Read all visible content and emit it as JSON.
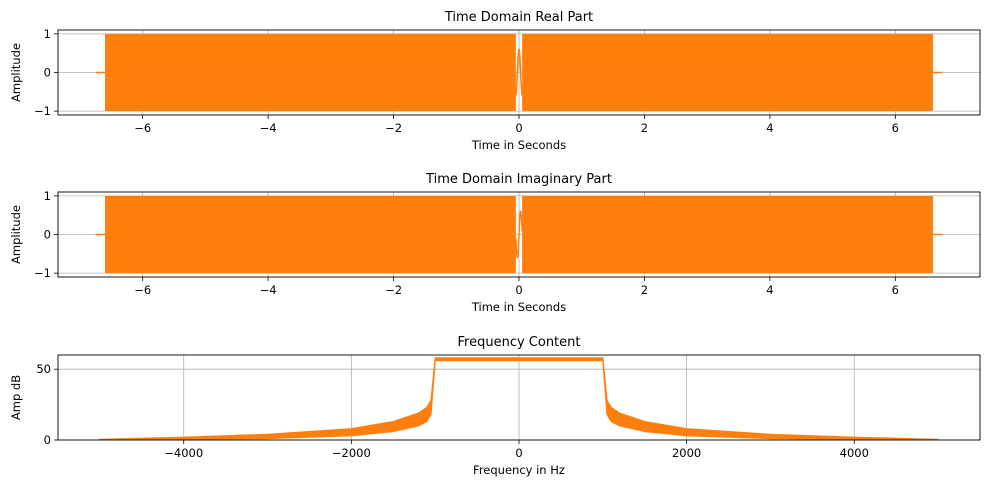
{
  "chart_data": [
    {
      "type": "line",
      "title": "Time Domain Real Part",
      "xlabel": "Time in Seconds",
      "ylabel": "Amplitude",
      "xlim": [
        -7.35,
        7.35
      ],
      "ylim": [
        -1.1,
        1.1
      ],
      "xticks": [
        -6,
        -4,
        -2,
        0,
        2,
        4,
        6
      ],
      "yticks": [
        -1,
        0,
        1
      ],
      "grid": true,
      "color": "#ff7f0e",
      "series": [
        {
          "x": [
            -6.75,
            -6.6,
            -6.6,
            -0.05,
            0.05,
            6.6,
            6.6,
            6.75
          ],
          "y_min": [
            0,
            0,
            -1,
            -1,
            -1,
            -1,
            0,
            0
          ],
          "y_max": [
            0,
            0,
            1,
            1,
            1,
            1,
            0,
            0
          ],
          "description_values": [
            0.55,
            -0.55,
            0.6
          ]
        }
      ]
    },
    {
      "type": "line",
      "title": "Time Domain Imaginary Part",
      "xlabel": "Time in Seconds",
      "ylabel": "Amplitude",
      "xlim": [
        -7.35,
        7.35
      ],
      "ylim": [
        -1.1,
        1.1
      ],
      "xticks": [
        -6,
        -4,
        -2,
        0,
        2,
        4,
        6
      ],
      "yticks": [
        -1,
        0,
        1
      ],
      "grid": true,
      "color": "#ff7f0e",
      "series": [
        {
          "x": [
            -6.75,
            -6.6,
            -6.6,
            -0.05,
            0.05,
            6.6,
            6.6,
            6.75
          ],
          "y_min": [
            0,
            0,
            -1,
            -1,
            -1,
            -1,
            0,
            0
          ],
          "y_max": [
            0,
            0,
            1,
            1,
            1,
            1,
            0,
            0
          ]
        }
      ]
    },
    {
      "type": "area",
      "title": "Frequency Content",
      "xlabel": "Frequency in Hz",
      "ylabel": "Amp dB",
      "xlim": [
        -5500,
        5500
      ],
      "ylim": [
        0,
        60
      ],
      "xticks": [
        -4000,
        -2000,
        0,
        2000,
        4000
      ],
      "yticks": [
        0,
        50
      ],
      "grid": true,
      "color": "#ff7f0e",
      "series": [
        {
          "freq": [
            -5000,
            -4000,
            -3000,
            -2000,
            -1500,
            -1200,
            -1100,
            -1050,
            -1000,
            1000,
            1050,
            1100,
            1200,
            1500,
            2000,
            3000,
            4000,
            5000
          ],
          "upper_db": [
            0.5,
            2,
            4,
            8,
            13,
            19,
            23,
            28,
            58,
            58,
            28,
            23,
            19,
            13,
            8,
            4,
            2,
            0.5
          ],
          "lower_db": [
            0,
            0.5,
            1,
            3,
            6,
            10,
            13,
            18,
            56,
            56,
            18,
            13,
            10,
            6,
            3,
            1,
            0.5,
            0
          ]
        }
      ]
    }
  ]
}
